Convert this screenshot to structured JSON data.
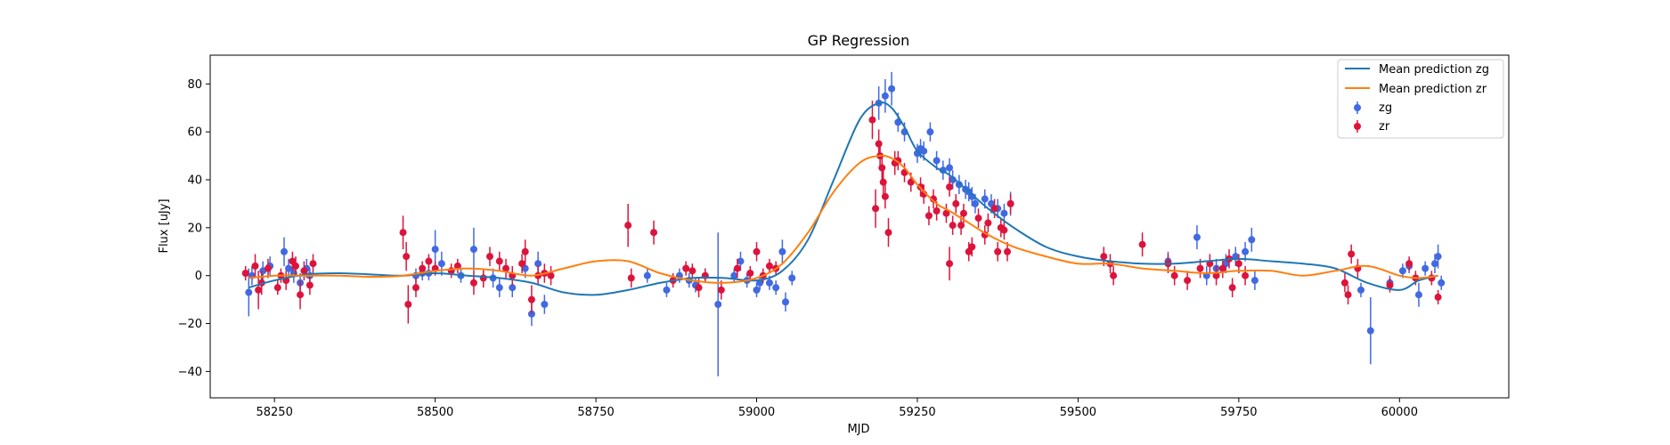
{
  "chart_data": {
    "type": "scatter",
    "title": "GP Regression",
    "xlabel": "MJD",
    "ylabel": "Flux [uJy]",
    "xlim": [
      58150,
      60170
    ],
    "ylim": [
      -51,
      92
    ],
    "xticks": [
      58250,
      58500,
      58750,
      59000,
      59250,
      59500,
      59750,
      60000
    ],
    "yticks": [
      -40,
      -20,
      0,
      20,
      40,
      60,
      80
    ],
    "grid": false,
    "legend_position": "top-right",
    "colors": {
      "zg_line": "#1f77b4",
      "zr_line": "#ff7f0e",
      "zg_points": "#4169e1",
      "zr_points": "#dc143c"
    },
    "lines": [
      {
        "name": "Mean prediction zg",
        "color": "#1f77b4",
        "x": [
          58210,
          58250,
          58300,
          58350,
          58400,
          58450,
          58500,
          58550,
          58600,
          58650,
          58700,
          58750,
          58800,
          58850,
          58900,
          58950,
          59000,
          59040,
          59080,
          59120,
          59160,
          59190,
          59210,
          59230,
          59250,
          59280,
          59300,
          59330,
          59360,
          59400,
          59450,
          59500,
          59550,
          59600,
          59650,
          59700,
          59750,
          59800,
          59850,
          59900,
          59950,
          60000,
          60030,
          60060
        ],
        "y": [
          -5,
          -2,
          0.5,
          1,
          0.5,
          0,
          1,
          0,
          -1,
          -3,
          -7,
          -8,
          -6,
          -3,
          -1,
          -1,
          -2,
          2,
          15,
          40,
          65,
          72,
          70,
          62,
          52,
          45,
          42,
          35,
          28,
          20,
          12,
          8,
          6,
          5,
          5,
          6,
          7,
          6,
          5,
          3,
          -3,
          -6,
          -2,
          0
        ]
      },
      {
        "name": "Mean prediction zr",
        "color": "#ff7f0e",
        "x": [
          58210,
          58250,
          58300,
          58350,
          58400,
          58450,
          58500,
          58550,
          58600,
          58650,
          58700,
          58750,
          58800,
          58850,
          58900,
          58950,
          59000,
          59040,
          59080,
          59120,
          59160,
          59190,
          59210,
          59230,
          59250,
          59280,
          59300,
          59330,
          59360,
          59400,
          59450,
          59500,
          59550,
          59600,
          59650,
          59700,
          59750,
          59800,
          59850,
          59900,
          59950,
          60000,
          60030,
          60060
        ],
        "y": [
          -1,
          0,
          0,
          0,
          -0.5,
          0,
          2,
          3,
          2,
          0,
          3,
          6,
          6,
          1,
          -2,
          -3,
          -1,
          5,
          18,
          35,
          47,
          50,
          49,
          45,
          38,
          30,
          27,
          22,
          17,
          12,
          8,
          5,
          5,
          3,
          2,
          1,
          2,
          2,
          0,
          2,
          4,
          0,
          -1,
          0
        ]
      }
    ],
    "series": [
      {
        "name": "zg",
        "color": "#4169e1",
        "points": [
          [
            58210,
            -7,
            10
          ],
          [
            58215,
            0,
            4
          ],
          [
            58232,
            2,
            4
          ],
          [
            58243,
            4,
            4
          ],
          [
            58265,
            10,
            6
          ],
          [
            58272,
            3,
            4
          ],
          [
            58280,
            1,
            4
          ],
          [
            58290,
            -3,
            4
          ],
          [
            58300,
            3,
            4
          ],
          [
            58305,
            0,
            3
          ],
          [
            58470,
            0,
            3
          ],
          [
            58480,
            1,
            3
          ],
          [
            58490,
            1,
            3
          ],
          [
            58500,
            11,
            8
          ],
          [
            58510,
            5,
            5
          ],
          [
            58540,
            0,
            3
          ],
          [
            58560,
            11,
            9
          ],
          [
            58590,
            -1,
            4
          ],
          [
            58600,
            -5,
            4
          ],
          [
            58620,
            -5,
            4
          ],
          [
            58640,
            3,
            4
          ],
          [
            58650,
            -16,
            5
          ],
          [
            58660,
            5,
            5
          ],
          [
            58670,
            -12,
            4
          ],
          [
            58830,
            0,
            3
          ],
          [
            58860,
            -6,
            3
          ],
          [
            58880,
            0,
            3
          ],
          [
            58895,
            -2,
            3
          ],
          [
            58905,
            -4,
            3
          ],
          [
            58920,
            0,
            3
          ],
          [
            58940,
            -12,
            30
          ],
          [
            58965,
            0,
            3
          ],
          [
            58975,
            6,
            4
          ],
          [
            58985,
            -2,
            3
          ],
          [
            59000,
            -6,
            3
          ],
          [
            59005,
            -3,
            3
          ],
          [
            59020,
            -3,
            3
          ],
          [
            59030,
            -5,
            3
          ],
          [
            59040,
            10,
            5
          ],
          [
            59045,
            -11,
            4
          ],
          [
            59055,
            -1,
            3
          ],
          [
            59190,
            72,
            7
          ],
          [
            59200,
            75,
            7
          ],
          [
            59210,
            78,
            7
          ],
          [
            59220,
            64,
            4
          ],
          [
            59230,
            60,
            4
          ],
          [
            59250,
            51,
            4
          ],
          [
            59255,
            53,
            4
          ],
          [
            59260,
            52,
            4
          ],
          [
            59270,
            60,
            4
          ],
          [
            59280,
            48,
            4
          ],
          [
            59290,
            44,
            4
          ],
          [
            59300,
            45,
            4
          ],
          [
            59305,
            40,
            4
          ],
          [
            59315,
            38,
            4
          ],
          [
            59325,
            36,
            4
          ],
          [
            59330,
            35,
            4
          ],
          [
            59335,
            33,
            4
          ],
          [
            59340,
            30,
            4
          ],
          [
            59355,
            32,
            4
          ],
          [
            59365,
            30,
            4
          ],
          [
            59375,
            28,
            4
          ],
          [
            59385,
            26,
            4
          ],
          [
            59395,
            30,
            5
          ],
          [
            59640,
            6,
            4
          ],
          [
            59685,
            16,
            5
          ],
          [
            59700,
            0,
            4
          ],
          [
            59715,
            3,
            4
          ],
          [
            59730,
            5,
            4
          ],
          [
            59745,
            8,
            4
          ],
          [
            59760,
            10,
            4
          ],
          [
            59770,
            15,
            5
          ],
          [
            59775,
            -2,
            4
          ],
          [
            59940,
            -6,
            3
          ],
          [
            59955,
            -23,
            14
          ],
          [
            59985,
            -3,
            3
          ],
          [
            60005,
            2,
            3
          ],
          [
            60015,
            4,
            3
          ],
          [
            60030,
            -8,
            5
          ],
          [
            60040,
            3,
            3
          ],
          [
            60055,
            5,
            4
          ],
          [
            60060,
            8,
            5
          ],
          [
            60065,
            -3,
            3
          ]
        ]
      },
      {
        "name": "zr",
        "color": "#dc143c",
        "points": [
          [
            58205,
            1,
            3
          ],
          [
            58220,
            4,
            5
          ],
          [
            58225,
            -6,
            8
          ],
          [
            58230,
            -3,
            5
          ],
          [
            58240,
            3,
            4
          ],
          [
            58255,
            -5,
            3
          ],
          [
            58260,
            0,
            3
          ],
          [
            58268,
            -2,
            4
          ],
          [
            58278,
            6,
            4
          ],
          [
            58283,
            4,
            4
          ],
          [
            58290,
            -8,
            6
          ],
          [
            58296,
            2,
            4
          ],
          [
            58305,
            -4,
            4
          ],
          [
            58310,
            5,
            4
          ],
          [
            58450,
            18,
            7
          ],
          [
            58455,
            8,
            6
          ],
          [
            58458,
            -12,
            8
          ],
          [
            58470,
            -5,
            4
          ],
          [
            58480,
            3,
            3
          ],
          [
            58490,
            6,
            3
          ],
          [
            58500,
            3,
            3
          ],
          [
            58525,
            2,
            3
          ],
          [
            58535,
            4,
            3
          ],
          [
            58560,
            -3,
            5
          ],
          [
            58575,
            -1,
            4
          ],
          [
            58585,
            8,
            4
          ],
          [
            58600,
            6,
            4
          ],
          [
            58610,
            3,
            4
          ],
          [
            58620,
            0,
            4
          ],
          [
            58635,
            5,
            4
          ],
          [
            58640,
            10,
            5
          ],
          [
            58650,
            -10,
            6
          ],
          [
            58660,
            0,
            4
          ],
          [
            58670,
            1,
            4
          ],
          [
            58680,
            0,
            4
          ],
          [
            58800,
            21,
            9
          ],
          [
            58805,
            -1,
            4
          ],
          [
            58840,
            18,
            5
          ],
          [
            58870,
            -2,
            3
          ],
          [
            58890,
            3,
            3
          ],
          [
            58900,
            2,
            3
          ],
          [
            58910,
            -5,
            4
          ],
          [
            58920,
            0,
            3
          ],
          [
            58945,
            -6,
            4
          ],
          [
            58970,
            3,
            4
          ],
          [
            58990,
            1,
            3
          ],
          [
            59000,
            10,
            4
          ],
          [
            59010,
            0,
            3
          ],
          [
            59020,
            4,
            3
          ],
          [
            59030,
            3,
            3
          ],
          [
            59180,
            65,
            8
          ],
          [
            59185,
            28,
            8
          ],
          [
            59190,
            55,
            6
          ],
          [
            59192,
            50,
            5
          ],
          [
            59195,
            45,
            5
          ],
          [
            59197,
            39,
            5
          ],
          [
            59200,
            33,
            5
          ],
          [
            59205,
            18,
            6
          ],
          [
            59215,
            47,
            5
          ],
          [
            59220,
            48,
            4
          ],
          [
            59230,
            43,
            4
          ],
          [
            59240,
            39,
            4
          ],
          [
            59255,
            37,
            4
          ],
          [
            59260,
            34,
            4
          ],
          [
            59268,
            25,
            4
          ],
          [
            59275,
            32,
            4
          ],
          [
            59280,
            27,
            4
          ],
          [
            59295,
            26,
            4
          ],
          [
            59300,
            37,
            4
          ],
          [
            59305,
            21,
            4
          ],
          [
            59310,
            30,
            4
          ],
          [
            59318,
            21,
            4
          ],
          [
            59322,
            26,
            4
          ],
          [
            59330,
            10,
            4
          ],
          [
            59335,
            12,
            4
          ],
          [
            59345,
            24,
            4
          ],
          [
            59355,
            17,
            4
          ],
          [
            59360,
            22,
            4
          ],
          [
            59370,
            28,
            4
          ],
          [
            59375,
            10,
            4
          ],
          [
            59380,
            20,
            4
          ],
          [
            59385,
            19,
            4
          ],
          [
            59390,
            10,
            4
          ],
          [
            59395,
            30,
            4
          ],
          [
            59300,
            5,
            7
          ],
          [
            59540,
            8,
            4
          ],
          [
            59550,
            5,
            4
          ],
          [
            59555,
            0,
            4
          ],
          [
            59600,
            13,
            5
          ],
          [
            59640,
            5,
            4
          ],
          [
            59650,
            0,
            4
          ],
          [
            59670,
            -2,
            4
          ],
          [
            59690,
            3,
            4
          ],
          [
            59705,
            5,
            4
          ],
          [
            59715,
            0,
            4
          ],
          [
            59725,
            3,
            4
          ],
          [
            59735,
            7,
            4
          ],
          [
            59740,
            -5,
            4
          ],
          [
            59750,
            5,
            4
          ],
          [
            59760,
            0,
            4
          ],
          [
            59915,
            -3,
            4
          ],
          [
            59920,
            -8,
            4
          ],
          [
            59925,
            9,
            4
          ],
          [
            59935,
            3,
            4
          ],
          [
            59985,
            -4,
            3
          ],
          [
            60015,
            5,
            3
          ],
          [
            60025,
            -1,
            3
          ],
          [
            60050,
            -1,
            3
          ],
          [
            60060,
            -9,
            3
          ]
        ]
      }
    ]
  }
}
